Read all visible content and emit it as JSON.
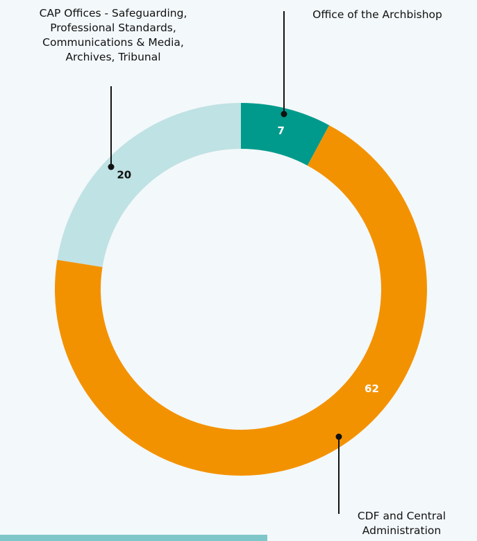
{
  "chart_data": {
    "type": "donut",
    "start_angle_deg": 0,
    "direction": "clockwise",
    "slices": [
      {
        "label": "Office of the Archbishop",
        "value": 7,
        "color": "#009a8c",
        "value_color": "#ffffff"
      },
      {
        "label": "CDF and Central Administration",
        "value": 62,
        "color": "#f39200",
        "value_color": "#ffffff"
      },
      {
        "label": "CAP Offices - Safeguarding, Professional Standards, Communications & Media, Archives, Tribunal",
        "value": 20,
        "color": "#bfe2e4",
        "value_color": "#111111"
      }
    ]
  },
  "labels": {
    "office": "Office of the Archbishop",
    "cdf": [
      "CDF and Central",
      "Administration"
    ],
    "cap": [
      "CAP Offices - Safeguarding,",
      "Professional Standards,",
      "Communications & Media,",
      "Archives, Tribunal"
    ]
  },
  "colors": {
    "background": "#f3f8fa",
    "leader_line": "#111111",
    "bottom_strip": "#7ec6c9"
  }
}
